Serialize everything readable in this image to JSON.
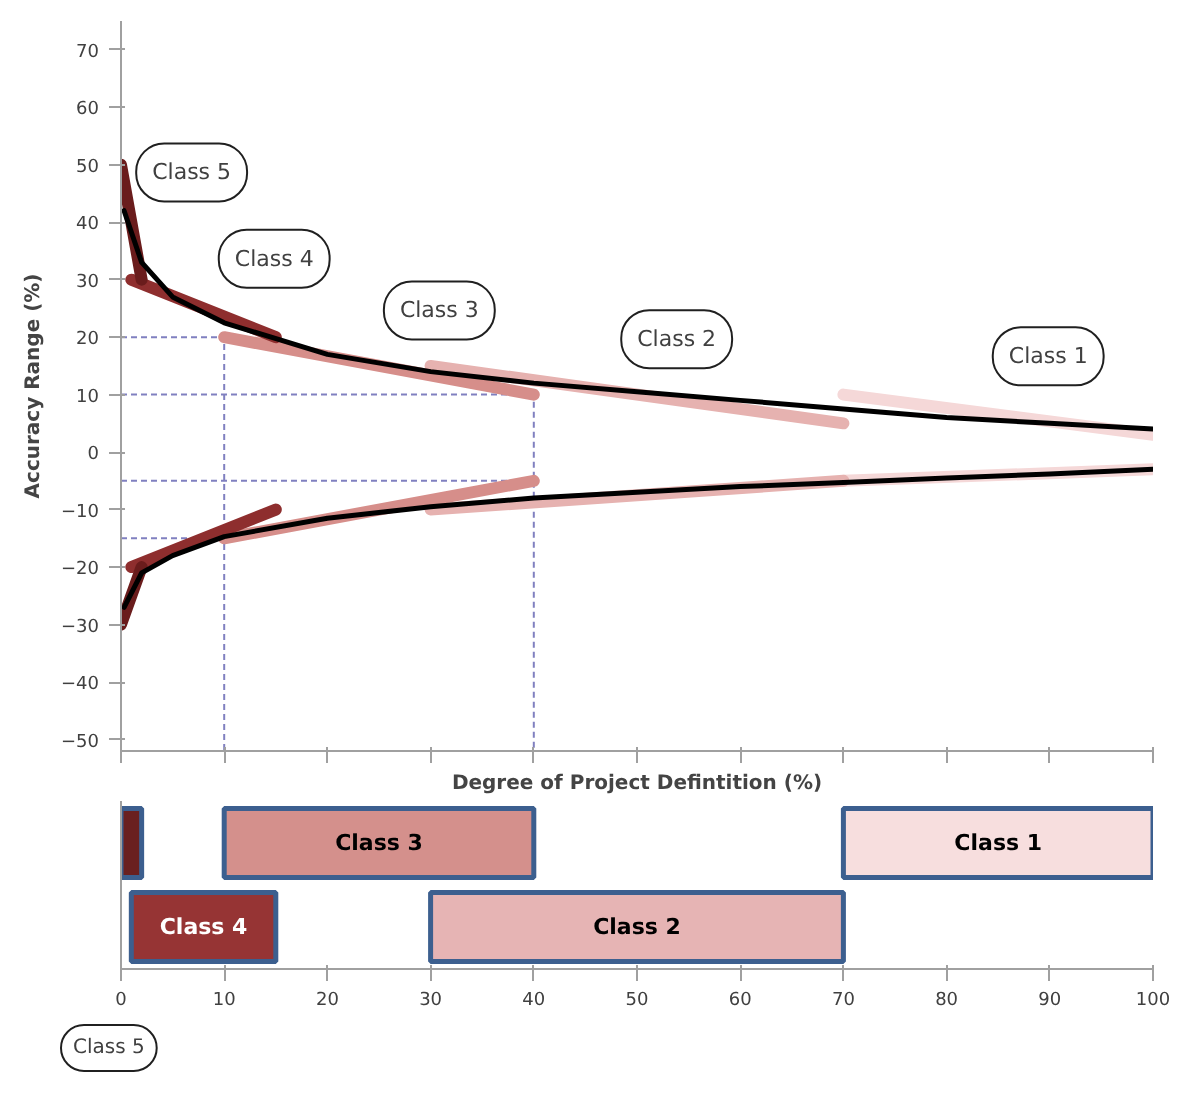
{
  "chart_data": [
    {
      "type": "line",
      "ylabel": "Accuracy Range (%)",
      "xlabel": "Degree of Project Defintition (%)",
      "xlim": [
        0,
        100
      ],
      "xticks": [
        0,
        10,
        20,
        30,
        40,
        50,
        60,
        70,
        80,
        90,
        100
      ],
      "tick_labels": "y",
      "ylim": [
        -52,
        75
      ],
      "yticks": [
        -50,
        -40,
        -30,
        -20,
        -10,
        0,
        10,
        20,
        30,
        40,
        50,
        60,
        70
      ],
      "grid": false,
      "marker": "none",
      "series": [
        {
          "color": "#8080c0",
          "line_style": "dashed",
          "x": [
            0,
            10,
            10
          ],
          "values": [
            20,
            20,
            -52
          ]
        },
        {
          "color": "#8080c0",
          "line_style": "dashed",
          "x": [
            0,
            40,
            40
          ],
          "values": [
            10,
            10,
            -52
          ]
        },
        {
          "color": "#8080c0",
          "line_style": "dashed",
          "x": [
            0,
            10
          ],
          "values": [
            -15,
            -15
          ]
        },
        {
          "color": "#8080c0",
          "line_style": "dashed",
          "x": [
            0,
            40
          ],
          "values": [
            -5,
            -5
          ]
        },
        {
          "color": "#f5d8d8",
          "x": [
            70,
            100
          ],
          "values": [
            10,
            3
          ]
        },
        {
          "color": "#f5d8d8",
          "x": [
            70,
            100
          ],
          "values": [
            -5,
            -3
          ]
        },
        {
          "color": "#e6b2b0",
          "x": [
            30,
            70
          ],
          "values": [
            15,
            5
          ]
        },
        {
          "color": "#e6b2b0",
          "x": [
            30,
            70
          ],
          "values": [
            -10,
            -5
          ]
        },
        {
          "color": "#d68e8a",
          "x": [
            10,
            40
          ],
          "values": [
            20,
            10
          ]
        },
        {
          "color": "#d68e8a",
          "x": [
            10,
            40
          ],
          "values": [
            -15,
            -5
          ]
        },
        {
          "color": "#8e2e2e",
          "x": [
            1,
            15
          ],
          "values": [
            30,
            20
          ]
        },
        {
          "color": "#8e2e2e",
          "x": [
            1,
            15
          ],
          "values": [
            -20,
            -10
          ]
        },
        {
          "color": "#6a1c1c",
          "x": [
            0,
            2
          ],
          "values": [
            50,
            30
          ]
        },
        {
          "color": "#6a1c1c",
          "x": [
            0,
            2
          ],
          "values": [
            -30,
            -20
          ]
        },
        {
          "color": "#000000",
          "x": [
            0.3,
            2,
            5,
            10,
            20,
            30,
            40,
            50,
            60,
            70,
            80,
            90,
            100
          ],
          "values": [
            42,
            33,
            27,
            22.5,
            17,
            14,
            12,
            10.5,
            9,
            7.5,
            6,
            5,
            4
          ]
        },
        {
          "color": "#000000",
          "x": [
            0.3,
            2,
            5,
            10,
            20,
            30,
            40,
            50,
            60,
            70,
            80,
            90,
            100
          ],
          "values": [
            -27,
            -21,
            -18,
            -14.7,
            -11.5,
            -9.5,
            -8,
            -7,
            -6,
            -5.3,
            -4.5,
            -3.8,
            -3
          ]
        }
      ],
      "annotations": [
        {
          "text": "Class 5",
          "x": 2,
          "y": 41
        },
        {
          "text": "Class 4",
          "x": 10,
          "y": 26
        },
        {
          "text": "Class 3",
          "x": 26,
          "y": 17
        },
        {
          "text": "Class 2",
          "x": 49,
          "y": 12
        },
        {
          "text": "Class 1",
          "x": 85,
          "y": 9
        }
      ]
    },
    {
      "type": "bar",
      "orientation": "horizontal",
      "categories": [
        null,
        null
      ],
      "xlim": [
        0,
        100
      ],
      "xticks": [
        0,
        10,
        20,
        30,
        40,
        50,
        60,
        70,
        80,
        90,
        100
      ],
      "tick_labels": "x",
      "series": [
        {
          "base": [
            0,
            1
          ],
          "values": [
            2,
            14
          ],
          "colors": [
            "#6a2020",
            "#963434"
          ],
          "value_labels": [
            null,
            "Class 4"
          ]
        },
        {
          "base": [
            10,
            30
          ],
          "values": [
            30,
            40
          ],
          "colors": [
            "#d4908c",
            "#e6b4b4"
          ],
          "value_labels": [
            "Class 3",
            "Class 2"
          ]
        },
        {
          "base": [
            70,
            null
          ],
          "values": [
            30,
            null
          ],
          "colors": [
            "#f7dede",
            null
          ],
          "value_labels": [
            "Class 1",
            null
          ]
        }
      ],
      "annotations": [
        "Class 5"
      ]
    }
  ]
}
